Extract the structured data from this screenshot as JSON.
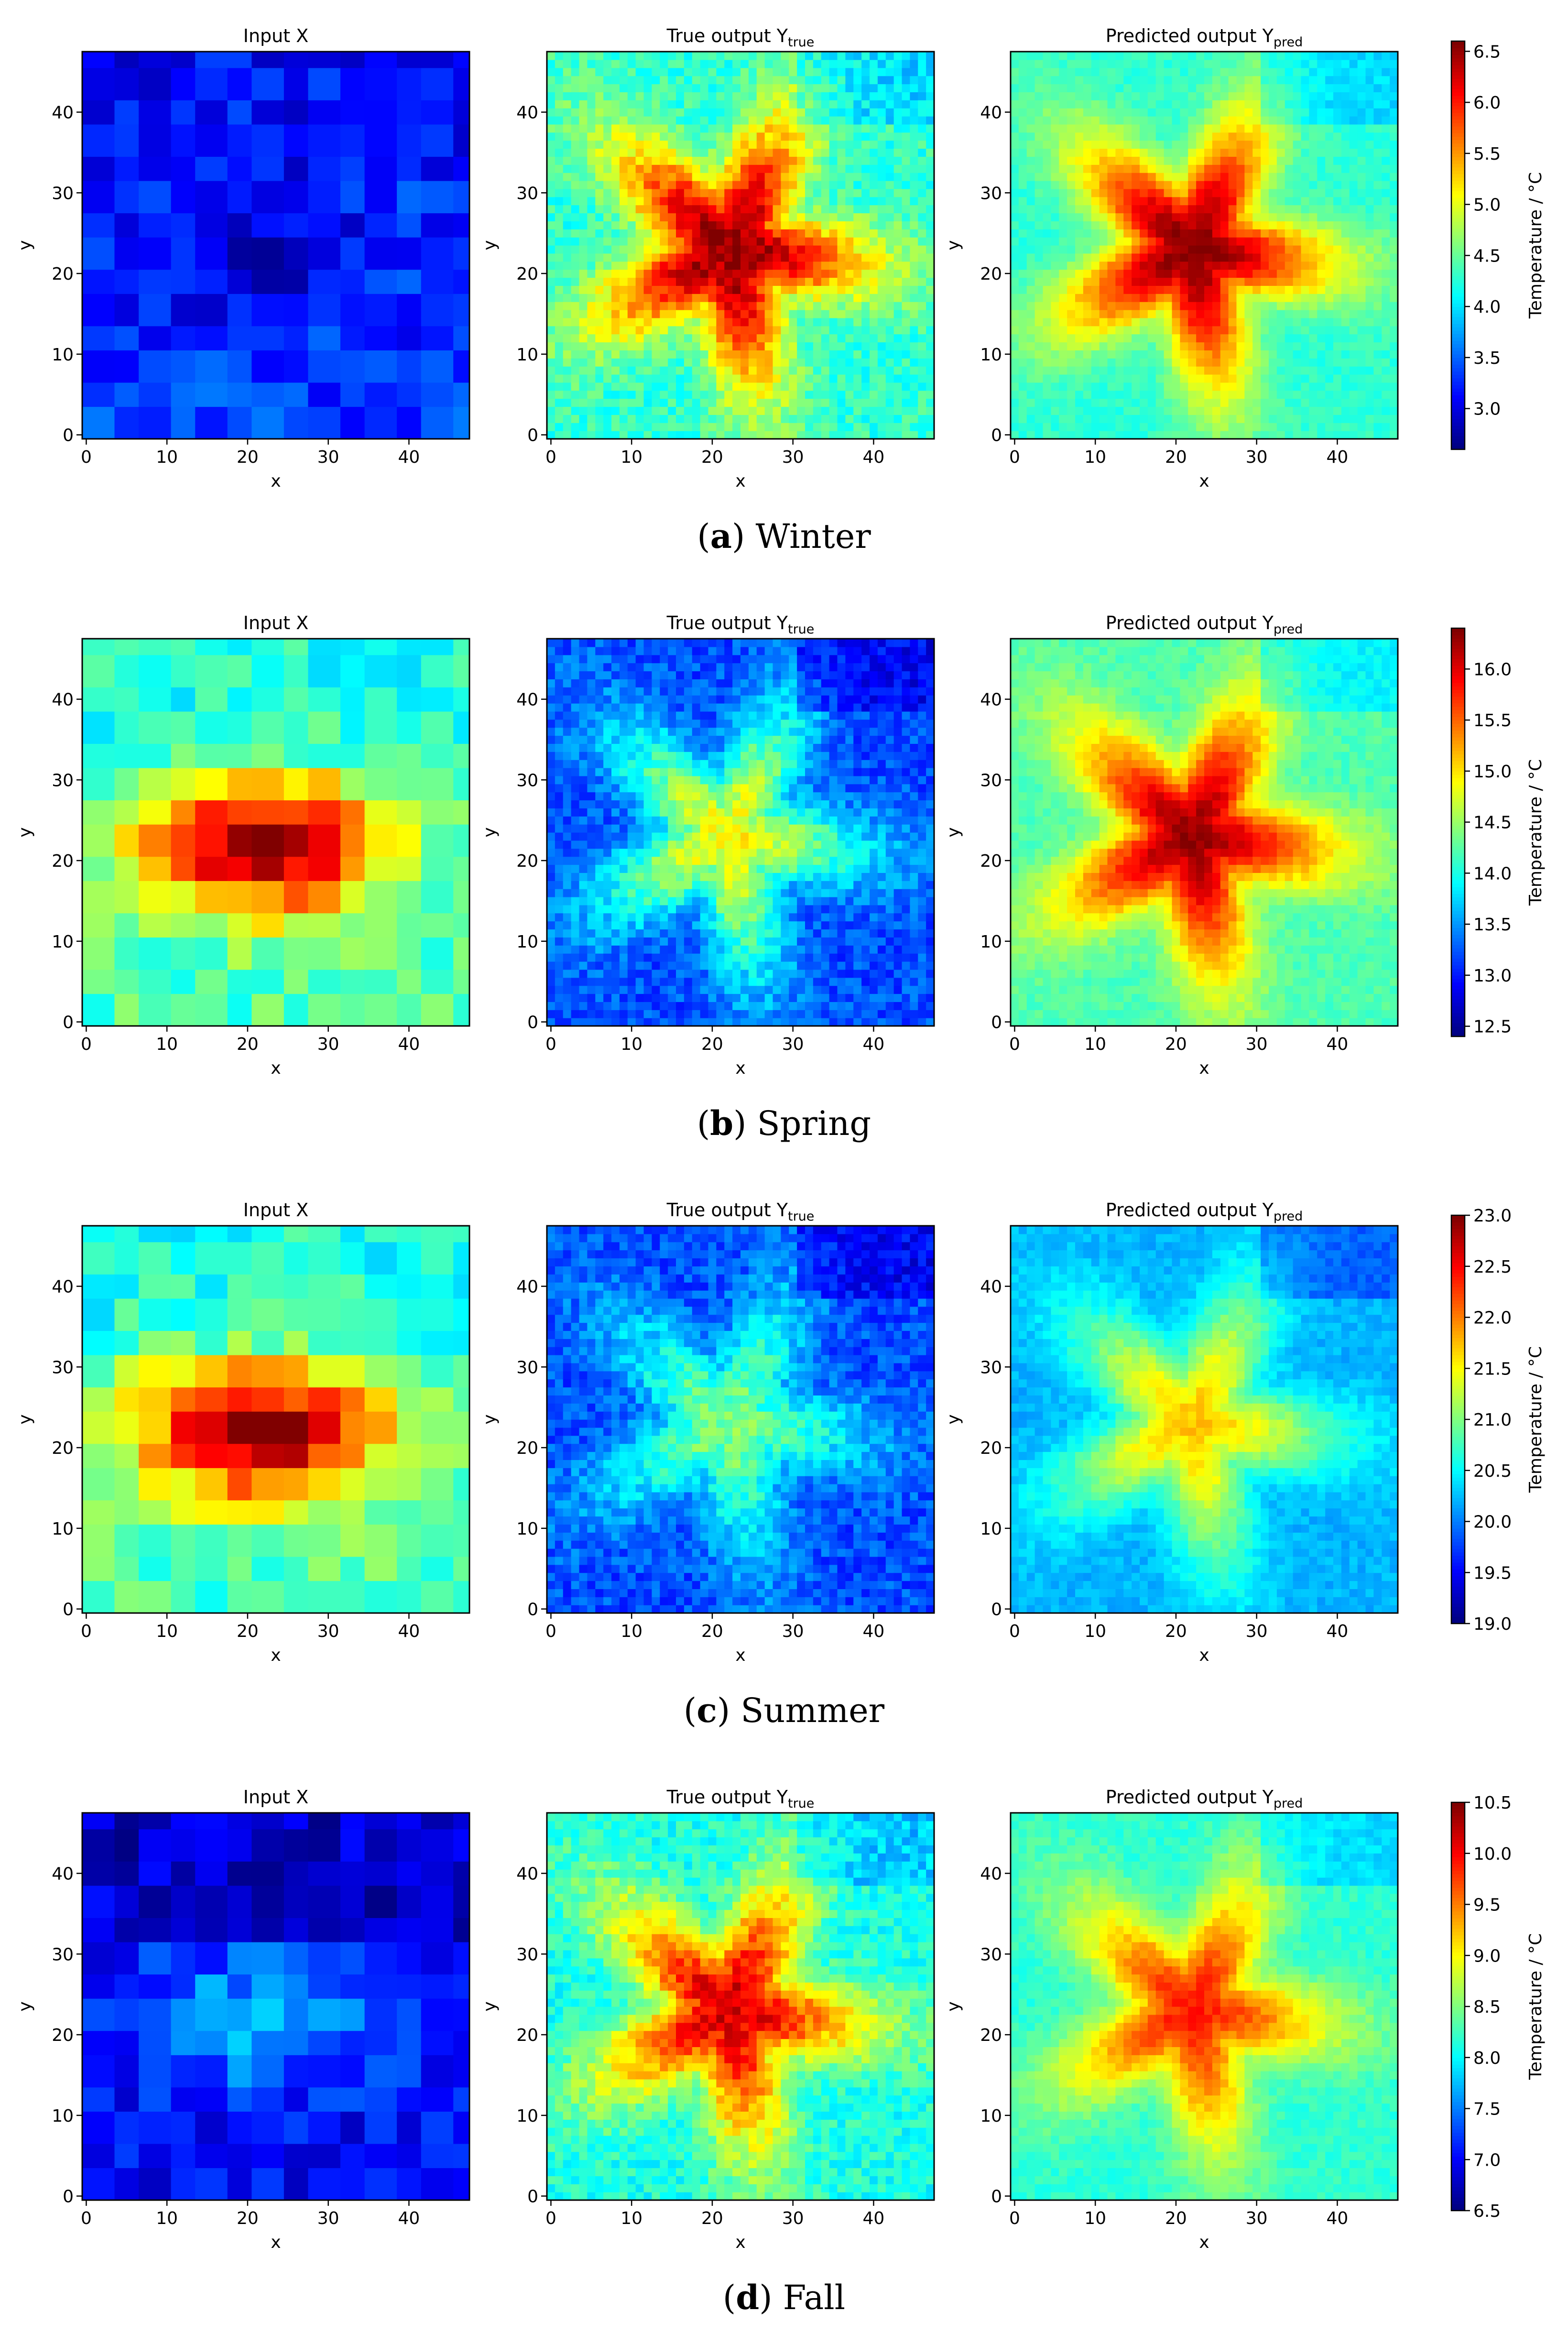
{
  "chart_data": [
    {
      "type": "heatmap",
      "season": "Winter",
      "caption_letter": "a",
      "caption_text": "Winter",
      "colorbar": {
        "label": "Temperature / °C",
        "min": 2.6,
        "max": 6.6,
        "ticks": [
          "3.0",
          "3.5",
          "4.0",
          "4.5",
          "5.0",
          "5.5",
          "6.0",
          "6.5"
        ]
      },
      "panels": [
        {
          "title": "Input X",
          "kind": "input",
          "peak": 0.08,
          "base": 0.18
        },
        {
          "title": "True output Y_true",
          "kind": "true",
          "peak": 1.0,
          "base": 0.42
        },
        {
          "title": "Predicted output Y_pred",
          "kind": "pred",
          "peak": 1.0,
          "base": 0.42
        }
      ]
    },
    {
      "type": "heatmap",
      "season": "Spring",
      "caption_letter": "b",
      "caption_text": "Spring",
      "colorbar": {
        "label": "Temperature / °C",
        "min": 12.4,
        "max": 16.4,
        "ticks": [
          "12.5",
          "13.0",
          "13.5",
          "14.0",
          "14.5",
          "15.0",
          "15.5",
          "16.0"
        ]
      },
      "panels": [
        {
          "title": "Input X",
          "kind": "input",
          "peak": 0.98,
          "base": 0.45
        },
        {
          "title": "True output Y_true",
          "kind": "true",
          "peak": 0.62,
          "base": 0.2
        },
        {
          "title": "Predicted output Y_pred",
          "kind": "pred",
          "peak": 0.98,
          "base": 0.45
        }
      ]
    },
    {
      "type": "heatmap",
      "season": "Summer",
      "caption_letter": "c",
      "caption_text": "Summer",
      "colorbar": {
        "label": "Temperature / °C",
        "min": 19.0,
        "max": 23.0,
        "ticks": [
          "19.0",
          "19.5",
          "20.0",
          "20.5",
          "21.0",
          "21.5",
          "22.0",
          "22.5",
          "23.0"
        ]
      },
      "panels": [
        {
          "title": "Input X",
          "kind": "input",
          "peak": 1.0,
          "base": 0.45
        },
        {
          "title": "True output Y_true",
          "kind": "true",
          "peak": 0.5,
          "base": 0.2
        },
        {
          "title": "Predicted output Y_pred",
          "kind": "pred",
          "peak": 0.68,
          "base": 0.3
        }
      ]
    },
    {
      "type": "heatmap",
      "season": "Fall",
      "caption_letter": "d",
      "caption_text": "Fall",
      "colorbar": {
        "label": "Temperature / °C",
        "min": 6.5,
        "max": 10.5,
        "ticks": [
          "6.5",
          "7.0",
          "7.5",
          "8.0",
          "8.5",
          "9.0",
          "9.5",
          "10.0",
          "10.5"
        ]
      },
      "panels": [
        {
          "title": "Input X",
          "kind": "input",
          "peak": 0.3,
          "base": 0.12
        },
        {
          "title": "True output Y_true",
          "kind": "true",
          "peak": 0.92,
          "base": 0.4
        },
        {
          "title": "Predicted output Y_pred",
          "kind": "pred",
          "peak": 0.85,
          "base": 0.42
        }
      ]
    }
  ],
  "axes": {
    "xlabel": "x",
    "ylabel": "y",
    "xlim": [
      0,
      48
    ],
    "ylim": [
      0,
      48
    ],
    "xticks": [
      "0",
      "10",
      "20",
      "30",
      "40"
    ],
    "yticks": [
      "0",
      "10",
      "20",
      "30",
      "40"
    ]
  },
  "colormap": "jet"
}
